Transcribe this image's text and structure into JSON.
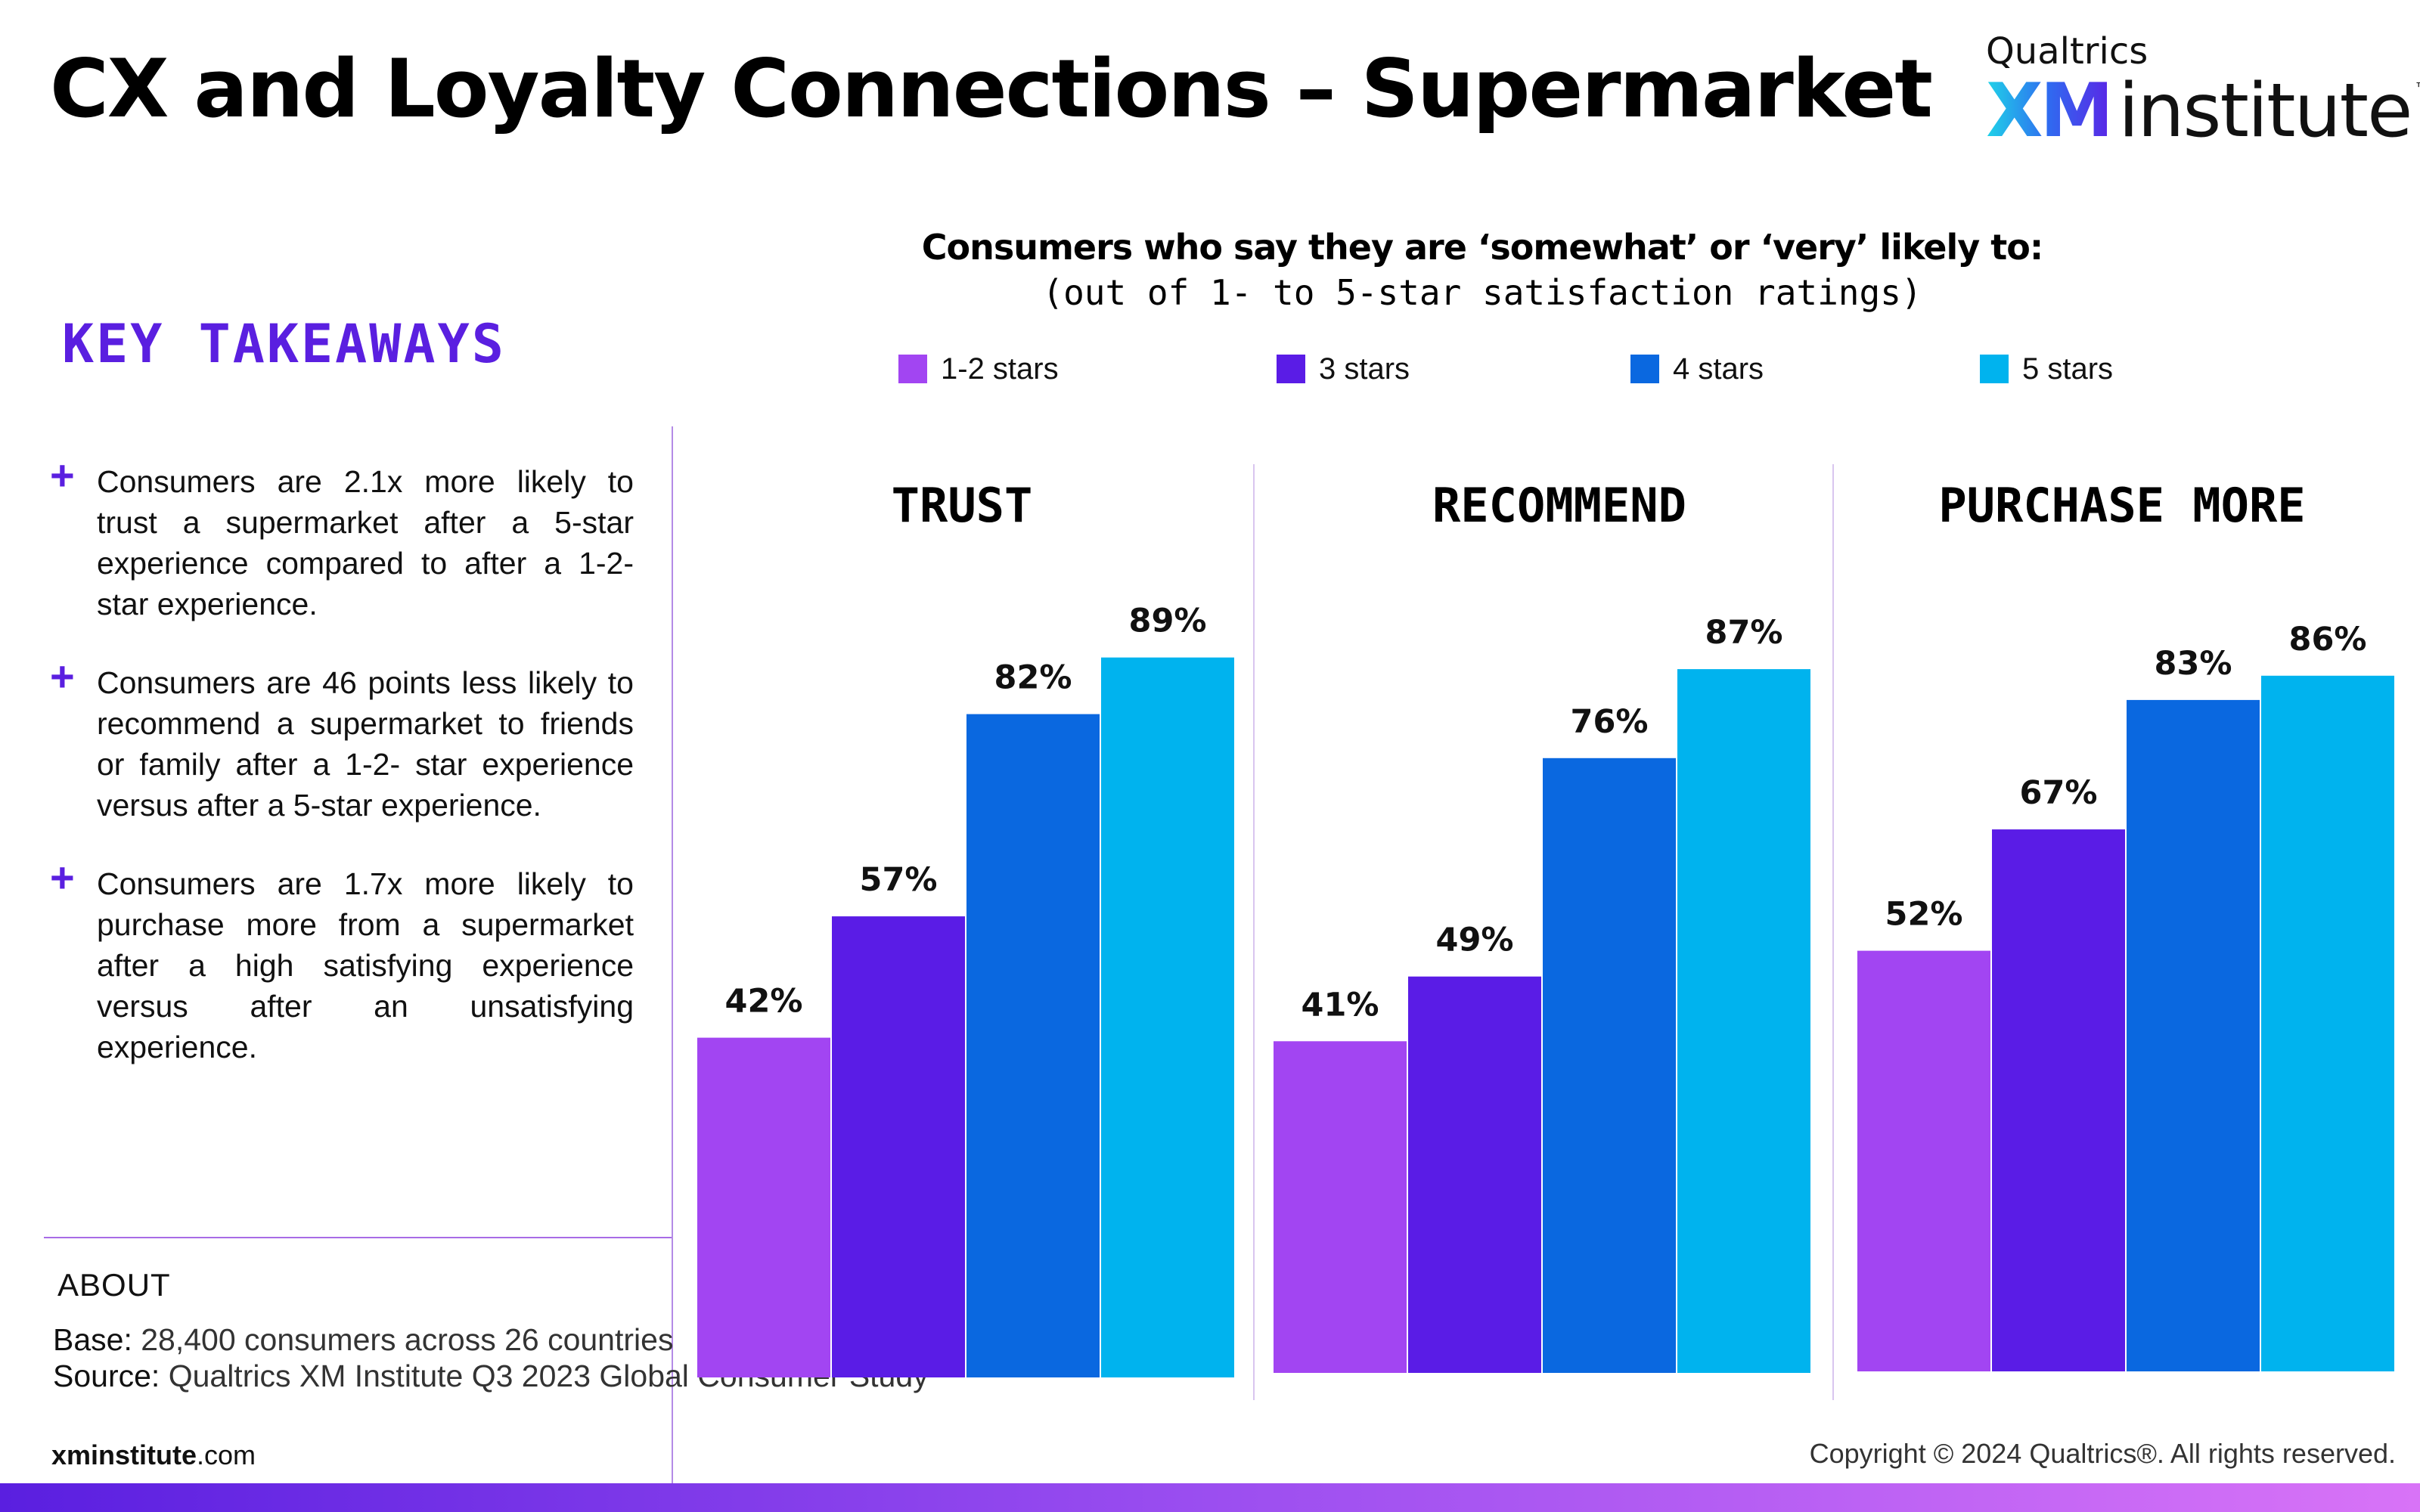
{
  "title": "CX and Loyalty Connections – Supermarket",
  "logo": {
    "brand": "Qualtrics",
    "mark": "XM",
    "name": "institute",
    "tm": "™"
  },
  "key_takeaways": {
    "heading": "KEY TAKEAWAYS",
    "items": [
      "Consumers are 2.1x more likely to trust a supermarket after a 5-star experience compared to after a 1-2-star experience.",
      "Consumers are 46 points less likely to recommend a supermarket to friends or family after a 1-2- star experience versus after a 5-star experience.",
      "Consumers are 1.7x more likely to purchase more from a supermarket after a high satisfying experience versus after an unsatisfying experience."
    ]
  },
  "about": {
    "heading": "ABOUT",
    "base_label": "Base:",
    "base_text": " 28,400 consumers across 26 countries",
    "source_label": "Source:",
    "source_text": " Qualtrics XM Institute Q3 2023 Global Consumer Study"
  },
  "footer": {
    "site_bold": "xminstitute",
    "site_rest": ".com",
    "copyright": "Copyright © 2024 Qualtrics®. All rights reserved."
  },
  "colors": {
    "accent": "#5a1fe0",
    "series": [
      "#a245f2",
      "#5a1ce6",
      "#0a68e0",
      "#00b3ee"
    ]
  },
  "chart_data": {
    "type": "bar",
    "title": "Consumers who say they are ‘somewhat’ or ‘very’ likely to:",
    "subtitle": "(out of 1- to 5-star satisfaction ratings)",
    "legend_position": "top",
    "categories": [
      "TRUST",
      "RECOMMEND",
      "PURCHASE MORE"
    ],
    "series": [
      {
        "name": "1-2 stars",
        "values": [
          42,
          41,
          52
        ],
        "labels": [
          "42%",
          "41%",
          "52%"
        ]
      },
      {
        "name": "3 stars",
        "values": [
          57,
          49,
          67
        ],
        "labels": [
          "57%",
          "49%",
          "67%"
        ]
      },
      {
        "name": "4 stars",
        "values": [
          82,
          76,
          83
        ],
        "labels": [
          "82%",
          "76%",
          "83%"
        ]
      },
      {
        "name": "5 stars",
        "values": [
          89,
          87,
          86
        ],
        "labels": [
          "89%",
          "87%",
          "86%"
        ]
      }
    ],
    "unit": "%",
    "ylim": [
      0,
      100
    ],
    "grid": false
  }
}
